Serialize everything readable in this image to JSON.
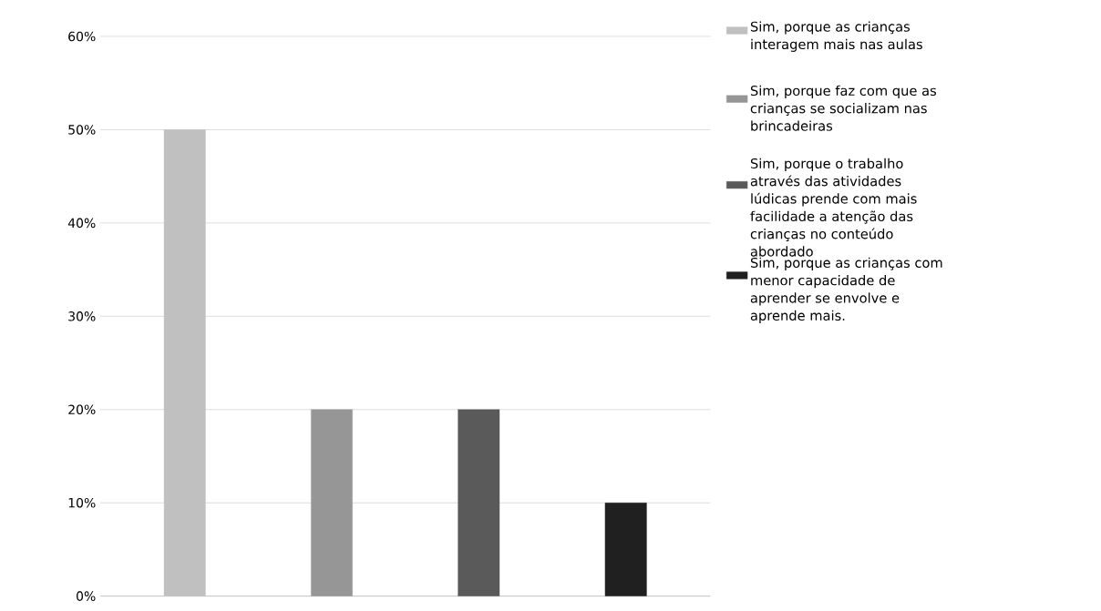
{
  "chart_data": {
    "type": "bar",
    "categories": [
      null
    ],
    "series": [
      {
        "name": "Sim, porque as crianças interagem mais nas aulas",
        "color": "#c0c0c0",
        "values": [
          50
        ]
      },
      {
        "name": "Sim, porque faz com que as crianças se socializam nas brincadeiras",
        "color": "#969696",
        "values": [
          20
        ]
      },
      {
        "name": "Sim, porque o trabalho através das atividades lúdicas prende com mais facilidade a atenção das crianças no conteúdo abordado",
        "color": "#5a5a5a",
        "values": [
          20
        ]
      },
      {
        "name": "Sim, porque as crianças com menor capacidade de aprender se envolve e aprende mais.",
        "color": "#202020",
        "values": [
          10
        ]
      }
    ],
    "ylim": [
      0,
      60
    ],
    "yticks": [
      {
        "value": 0,
        "label": "0%"
      },
      {
        "value": 10,
        "label": "10%"
      },
      {
        "value": 20,
        "label": "20%"
      },
      {
        "value": 30,
        "label": "30%"
      },
      {
        "value": 40,
        "label": "40%"
      },
      {
        "value": 50,
        "label": "50%"
      },
      {
        "value": 60,
        "label": "60%"
      }
    ],
    "grid": "y",
    "legend": "right",
    "tick_labels": "y"
  }
}
